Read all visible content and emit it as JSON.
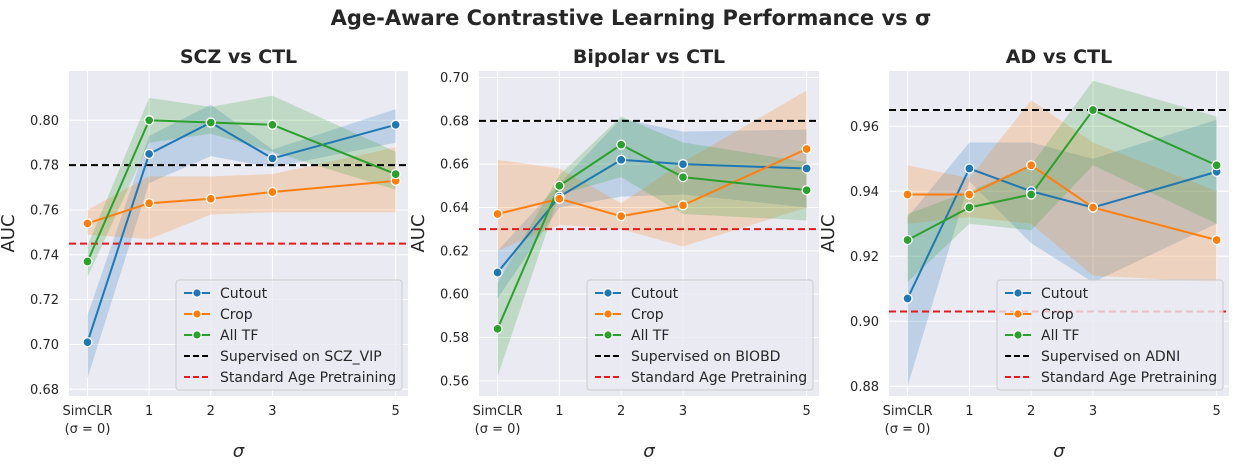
{
  "title": "Age-Aware Contrastive Learning Performance vs σ",
  "colors": {
    "cutout": "#1f77b4",
    "crop": "#ff7f0e",
    "all_tf": "#2ca02c",
    "supervised": "#000000",
    "standard_age": "#e41a1c",
    "panel_bg": "#eaeaf2",
    "grid": "#ffffff"
  },
  "chart_data": [
    {
      "type": "line",
      "title": "SCZ vs CTL",
      "xlabel": "σ",
      "ylabel": "AUC",
      "x": [
        0,
        1,
        2,
        3,
        5
      ],
      "x_tick_labels": [
        "SimCLR\n(σ = 0)",
        "1",
        "2",
        "3",
        "5"
      ],
      "ylim": [
        0.677,
        0.822
      ],
      "yticks": [
        0.68,
        0.7,
        0.72,
        0.74,
        0.76,
        0.78,
        0.8
      ],
      "grid": true,
      "legend_position": "lower-right",
      "series": [
        {
          "name": "Cutout",
          "color_key": "cutout",
          "values": [
            0.701,
            0.785,
            0.799,
            0.783,
            0.798
          ],
          "ci_low": [
            0.685,
            0.772,
            0.784,
            0.779,
            0.79
          ],
          "ci_high": [
            0.713,
            0.793,
            0.807,
            0.787,
            0.805
          ]
        },
        {
          "name": "Crop",
          "color_key": "crop",
          "values": [
            0.754,
            0.763,
            0.765,
            0.768,
            0.773
          ],
          "ci_low": [
            0.749,
            0.747,
            0.758,
            0.759,
            0.759
          ],
          "ci_high": [
            0.76,
            0.775,
            0.775,
            0.776,
            0.788
          ]
        },
        {
          "name": "All TF",
          "color_key": "all_tf",
          "values": [
            0.737,
            0.8,
            0.799,
            0.798,
            0.776
          ],
          "ci_low": [
            0.73,
            0.79,
            0.794,
            0.786,
            0.769
          ],
          "ci_high": [
            0.744,
            0.81,
            0.806,
            0.811,
            0.786
          ]
        }
      ],
      "reference_lines": [
        {
          "name": "Supervised on SCZ_VIP",
          "value": 0.78,
          "color_key": "supervised"
        },
        {
          "name": "Standard Age Pretraining",
          "value": 0.745,
          "color_key": "standard_age"
        }
      ]
    },
    {
      "type": "line",
      "title": "Bipolar vs CTL",
      "xlabel": "σ",
      "ylabel": "AUC",
      "x": [
        0,
        1,
        2,
        3,
        5
      ],
      "x_tick_labels": [
        "SimCLR\n(σ = 0)",
        "1",
        "2",
        "3",
        "5"
      ],
      "ylim": [
        0.553,
        0.703
      ],
      "yticks": [
        0.56,
        0.58,
        0.6,
        0.62,
        0.64,
        0.66,
        0.68,
        0.7
      ],
      "grid": true,
      "legend_position": "lower-right",
      "series": [
        {
          "name": "Cutout",
          "color_key": "cutout",
          "values": [
            0.61,
            0.645,
            0.662,
            0.66,
            0.658
          ],
          "ci_low": [
            0.598,
            0.64,
            0.645,
            0.646,
            0.64
          ],
          "ci_high": [
            0.62,
            0.651,
            0.681,
            0.675,
            0.676
          ]
        },
        {
          "name": "Crop",
          "color_key": "crop",
          "values": [
            0.637,
            0.644,
            0.636,
            0.641,
            0.667
          ],
          "ci_low": [
            0.62,
            0.632,
            0.63,
            0.622,
            0.64
          ],
          "ci_high": [
            0.662,
            0.658,
            0.642,
            0.661,
            0.694
          ]
        },
        {
          "name": "All TF",
          "color_key": "all_tf",
          "values": [
            0.584,
            0.65,
            0.669,
            0.654,
            0.648
          ],
          "ci_low": [
            0.562,
            0.646,
            0.654,
            0.637,
            0.634
          ],
          "ci_high": [
            0.605,
            0.655,
            0.682,
            0.67,
            0.661
          ]
        }
      ],
      "reference_lines": [
        {
          "name": "Supervised on BIOBD",
          "value": 0.68,
          "color_key": "supervised"
        },
        {
          "name": "Standard Age Pretraining",
          "value": 0.63,
          "color_key": "standard_age"
        }
      ]
    },
    {
      "type": "line",
      "title": "AD vs CTL",
      "xlabel": "σ",
      "ylabel": "AUC",
      "x": [
        0,
        1,
        2,
        3,
        5
      ],
      "x_tick_labels": [
        "SimCLR\n(σ = 0)",
        "1",
        "2",
        "3",
        "5"
      ],
      "ylim": [
        0.877,
        0.977
      ],
      "yticks": [
        0.88,
        0.9,
        0.92,
        0.94,
        0.96
      ],
      "grid": true,
      "legend_position": "lower-right",
      "series": [
        {
          "name": "Cutout",
          "color_key": "cutout",
          "values": [
            0.907,
            0.947,
            0.94,
            0.935,
            0.946
          ],
          "ci_low": [
            0.88,
            0.943,
            0.924,
            0.912,
            0.93
          ],
          "ci_high": [
            0.932,
            0.955,
            0.955,
            0.95,
            0.962
          ]
        },
        {
          "name": "Crop",
          "color_key": "crop",
          "values": [
            0.939,
            0.939,
            0.948,
            0.935,
            0.925
          ],
          "ci_low": [
            0.93,
            0.932,
            0.93,
            0.914,
            0.912
          ],
          "ci_high": [
            0.948,
            0.944,
            0.968,
            0.955,
            0.94
          ]
        },
        {
          "name": "All TF",
          "color_key": "all_tf",
          "values": [
            0.925,
            0.935,
            0.939,
            0.965,
            0.948
          ],
          "ci_low": [
            0.912,
            0.93,
            0.928,
            0.948,
            0.93
          ],
          "ci_high": [
            0.933,
            0.94,
            0.948,
            0.974,
            0.963
          ]
        }
      ],
      "reference_lines": [
        {
          "name": "Supervised on ADNI",
          "value": 0.965,
          "color_key": "supervised"
        },
        {
          "name": "Standard Age Pretraining",
          "value": 0.903,
          "color_key": "standard_age"
        }
      ]
    }
  ]
}
